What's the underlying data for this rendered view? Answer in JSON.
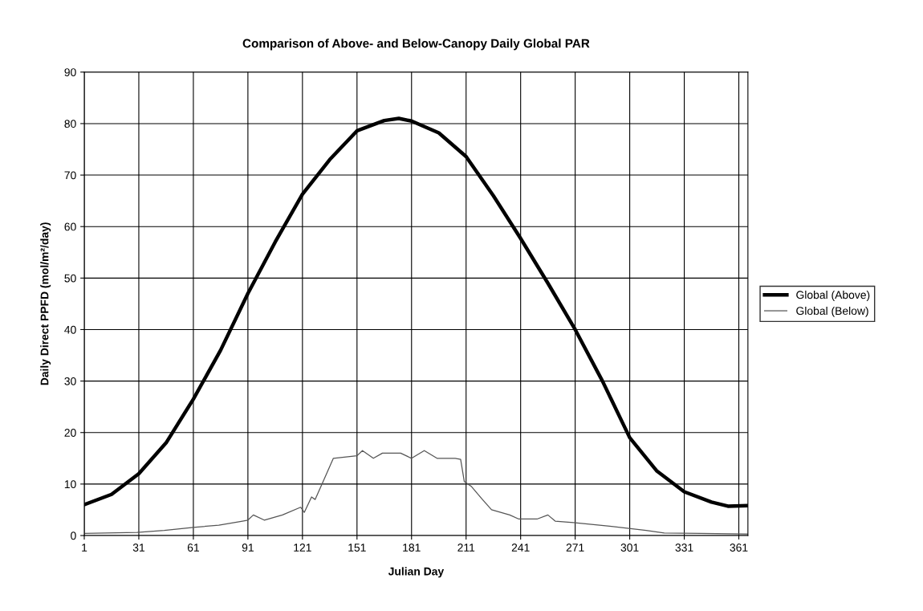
{
  "chart_data": {
    "type": "line",
    "title": "Comparison of Above- and Below-Canopy Daily Global PAR",
    "xlabel": "Julian Day",
    "ylabel": "Daily Direct PPFD (mol/m²/day)",
    "xlim": [
      1,
      366
    ],
    "xticks": [
      1,
      31,
      61,
      91,
      121,
      151,
      181,
      211,
      241,
      271,
      301,
      331,
      361
    ],
    "ylim": [
      0,
      90
    ],
    "yticks": [
      0,
      10,
      20,
      30,
      40,
      50,
      60,
      70,
      80,
      90
    ],
    "grid": true,
    "legend": "right",
    "marker": "none",
    "series": [
      {
        "name": "Global (Above)",
        "color": "#000000",
        "x": [
          1,
          16,
          31,
          46,
          61,
          76,
          91,
          106,
          121,
          136,
          151,
          166,
          174,
          181,
          196,
          211,
          226,
          241,
          256,
          271,
          286,
          301,
          316,
          331,
          346,
          355,
          366
        ],
        "values": [
          6,
          8,
          12,
          18,
          26.5,
          36,
          47,
          57,
          66.3,
          73,
          78.6,
          80.6,
          81,
          80.5,
          78.2,
          73.6,
          66,
          57.7,
          49,
          40,
          30,
          19,
          12.5,
          8.5,
          6.5,
          5.7,
          5.8
        ]
      },
      {
        "name": "Global (Below)",
        "color": "#555555",
        "x": [
          1,
          30,
          45,
          61,
          75,
          88,
          91,
          94,
          100,
          110,
          120,
          122,
          126,
          128,
          133,
          138,
          151,
          154,
          160,
          165,
          175,
          181,
          188,
          195,
          205,
          208,
          210,
          214,
          220,
          225,
          235,
          240,
          250,
          256,
          260,
          270,
          290,
          310,
          320,
          340,
          366
        ],
        "values": [
          0.4,
          0.6,
          1,
          1.6,
          2,
          2.8,
          3,
          4,
          3,
          4,
          5.5,
          4.5,
          7.5,
          7,
          11,
          15,
          15.5,
          16.5,
          15,
          16,
          16,
          15,
          16.5,
          15,
          15,
          14.8,
          10.5,
          9.5,
          7,
          5,
          4,
          3.2,
          3.2,
          4,
          2.8,
          2.5,
          1.8,
          1,
          0.5,
          0.4,
          0.3
        ]
      }
    ]
  }
}
